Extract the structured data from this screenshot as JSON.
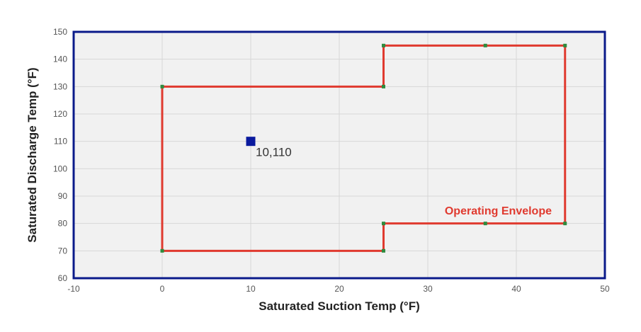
{
  "chart_data": {
    "type": "scatter",
    "title": "",
    "xlabel": "Saturated Suction Temp (°F)",
    "ylabel": "Saturated Discharge Temp (°F)",
    "xlim": [
      -10,
      50
    ],
    "ylim": [
      60,
      150
    ],
    "x_ticks": [
      -10,
      0,
      10,
      20,
      30,
      40,
      50
    ],
    "y_ticks": [
      60,
      70,
      80,
      90,
      100,
      110,
      120,
      130,
      140,
      150
    ],
    "x_tick_labels": [
      "-10",
      "0",
      "10",
      "20",
      "30",
      "40",
      "50"
    ],
    "y_tick_labels": [
      "60",
      "70",
      "80",
      "90",
      "100",
      "110",
      "120",
      "130",
      "140",
      "150"
    ],
    "grid": true,
    "series": [
      {
        "name": "Operating Envelope",
        "kind": "closed-line",
        "color": "#e03a2f",
        "vertex_color": "#2e8b3e",
        "points": [
          {
            "x": 0,
            "y": 70
          },
          {
            "x": 0,
            "y": 130
          },
          {
            "x": 25,
            "y": 130
          },
          {
            "x": 25,
            "y": 145
          },
          {
            "x": 36.5,
            "y": 145
          },
          {
            "x": 45.5,
            "y": 145
          },
          {
            "x": 45.5,
            "y": 80
          },
          {
            "x": 36.5,
            "y": 80
          },
          {
            "x": 25,
            "y": 80
          },
          {
            "x": 25,
            "y": 70
          }
        ]
      },
      {
        "name": "",
        "kind": "point",
        "color": "#0a1a9e",
        "points": [
          {
            "x": 10,
            "y": 110,
            "label": "10,110"
          }
        ]
      }
    ],
    "annotations": [
      {
        "text": "Operating Envelope",
        "color": "#e03a2f"
      }
    ],
    "colors": {
      "plot_background": "#f1f1f1",
      "plot_border": "#0a1a8a",
      "grid": "#d6d6d6"
    }
  }
}
